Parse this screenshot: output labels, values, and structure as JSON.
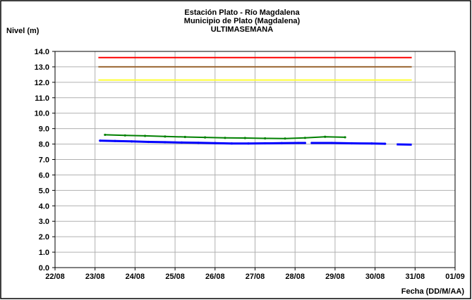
{
  "chart_data": {
    "type": "line",
    "title": [
      "Estación Plato - Río Magdalena",
      "Municipio de Plato (Magdalena)",
      "ULTIMASEMANA"
    ],
    "ylabel": "Nivel (m)",
    "xlabel": "Fecha (DD/M/AA)",
    "ylim": [
      0,
      14
    ],
    "yticks": [
      "0.0",
      "1.0",
      "2.0",
      "3.0",
      "4.0",
      "5.0",
      "6.0",
      "7.0",
      "8.0",
      "9.0",
      "10.0",
      "11.0",
      "12.0",
      "13.0",
      "14.0"
    ],
    "xlim": [
      "2008-08-22",
      "2008-09-01"
    ],
    "xticks": [
      "22/08",
      "23/08",
      "24/08",
      "25/08",
      "26/08",
      "27/08",
      "28/08",
      "29/08",
      "30/08",
      "31/08",
      "01/09"
    ],
    "grid": true,
    "series": [
      {
        "color": "#ff0000",
        "x": [
          "2008-08-23T02:00",
          "2008-08-30T22:00"
        ],
        "y": [
          13.6,
          13.6
        ]
      },
      {
        "color": "#996633",
        "x": [
          "2008-08-23T02:00",
          "2008-08-30T22:00"
        ],
        "y": [
          13.0,
          13.0
        ]
      },
      {
        "color": "#ffff33",
        "x": [
          "2008-08-23T02:00",
          "2008-08-30T22:00"
        ],
        "y": [
          12.15,
          12.15
        ]
      },
      {
        "color": "#008000",
        "x": [
          "2008-08-23T06:00",
          "2008-08-23T18:00",
          "2008-08-24T06:00",
          "2008-08-24T18:00",
          "2008-08-25T06:00",
          "2008-08-25T18:00",
          "2008-08-26T06:00",
          "2008-08-26T18:00",
          "2008-08-27T06:00",
          "2008-08-27T18:00",
          "2008-08-28T06:00",
          "2008-08-28T18:00",
          "2008-08-29T06:00"
        ],
        "y": [
          8.6,
          8.56,
          8.53,
          8.49,
          8.46,
          8.43,
          8.4,
          8.39,
          8.37,
          8.36,
          8.4,
          8.47,
          8.44
        ]
      },
      {
        "color": "#0000ff",
        "x": [
          "2008-08-23T03:00",
          "2008-08-23T12:00",
          "2008-08-23T22:00",
          "2008-08-24T08:00",
          "2008-08-24T18:00",
          "2008-08-25T04:00",
          "2008-08-25T14:00",
          "2008-08-26T00:00",
          "2008-08-26T10:00",
          "2008-08-26T20:00",
          "2008-08-27T06:00",
          "2008-08-27T16:00",
          "2008-08-28T02:00",
          "2008-08-28T06:00"
        ],
        "y": [
          8.22,
          8.2,
          8.17,
          8.14,
          8.12,
          8.1,
          8.08,
          8.06,
          8.04,
          8.04,
          8.05,
          8.06,
          8.07,
          8.07
        ]
      },
      {
        "color": "#0000ff",
        "x": [
          "2008-08-28T10:00",
          "2008-08-28T22:00",
          "2008-08-29T10:00",
          "2008-08-29T22:00",
          "2008-08-30T06:00"
        ],
        "y": [
          8.07,
          8.07,
          8.05,
          8.04,
          8.02
        ]
      },
      {
        "color": "#0000ff",
        "x": [
          "2008-08-30T13:00",
          "2008-08-30T22:00"
        ],
        "y": [
          7.98,
          7.96
        ]
      }
    ]
  }
}
